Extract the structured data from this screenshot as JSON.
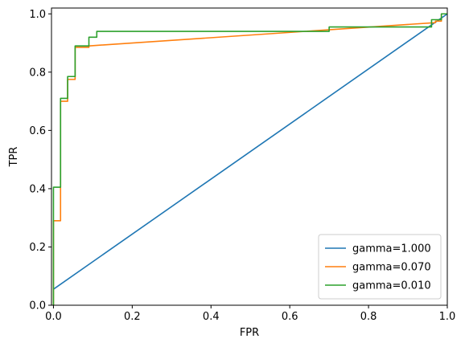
{
  "chart_data": {
    "type": "line",
    "title": "",
    "xlabel": "FPR",
    "ylabel": "TPR",
    "xlim": [
      -0.005,
      1.0
    ],
    "ylim": [
      0.0,
      1.02
    ],
    "xticks": [
      "0.0",
      "0.2",
      "0.4",
      "0.6",
      "0.8",
      "1.0"
    ],
    "yticks": [
      "0.0",
      "0.2",
      "0.4",
      "0.6",
      "0.8",
      "1.0"
    ],
    "xtick_values": [
      0.0,
      0.2,
      0.4,
      0.6,
      0.8,
      1.0
    ],
    "ytick_values": [
      0.0,
      0.2,
      0.4,
      0.6,
      0.8,
      1.0
    ],
    "grid": false,
    "legend_position": "lower right",
    "series": [
      {
        "name": "gamma=1.000",
        "color": "#1f77b4",
        "x": [
          0.0,
          1.0
        ],
        "y": [
          0.055,
          1.0
        ]
      },
      {
        "name": "gamma=0.070",
        "color": "#ff7f0e",
        "x": [
          0.0,
          0.0,
          0.0,
          0.018,
          0.018,
          0.036,
          0.036,
          0.055,
          0.055,
          0.09,
          0.09,
          0.97,
          0.97,
          0.985,
          0.985,
          1.0
        ],
        "y": [
          0.0,
          0.02,
          0.29,
          0.29,
          0.7,
          0.7,
          0.775,
          0.775,
          0.885,
          0.885,
          0.89,
          0.97,
          0.975,
          0.975,
          1.0,
          1.0
        ]
      },
      {
        "name": "gamma=0.010",
        "color": "#2ca02c",
        "x": [
          0.0,
          0.0,
          0.018,
          0.018,
          0.036,
          0.036,
          0.055,
          0.055,
          0.09,
          0.09,
          0.11,
          0.11,
          0.7,
          0.7,
          0.96,
          0.96,
          0.985,
          0.985,
          1.0
        ],
        "y": [
          0.0,
          0.405,
          0.405,
          0.71,
          0.71,
          0.785,
          0.785,
          0.89,
          0.89,
          0.92,
          0.92,
          0.94,
          0.94,
          0.955,
          0.955,
          0.98,
          0.98,
          1.0,
          1.0
        ]
      }
    ]
  }
}
